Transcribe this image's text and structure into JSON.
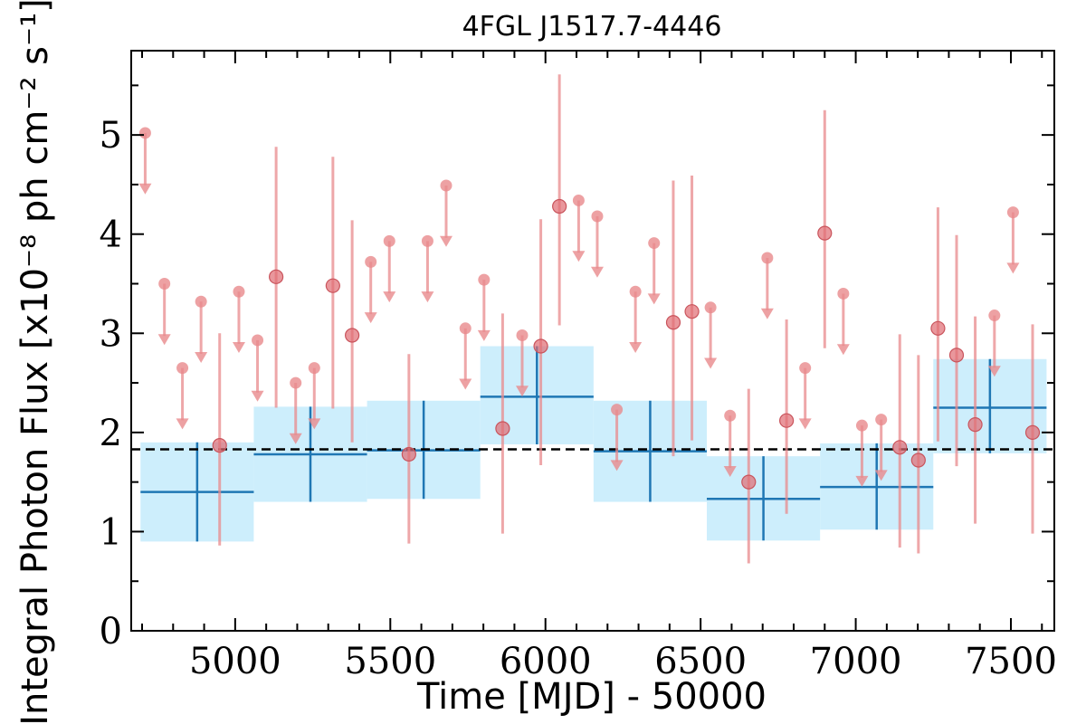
{
  "chart_data": {
    "type": "scatter",
    "title": "4FGL J1517.7-4446",
    "xlabel": "Time [MJD] - 50000",
    "ylabel": "Integral Photon Flux [x10⁻⁸ ph cm⁻² s⁻¹]",
    "xlim": [
      4665,
      7640
    ],
    "ylim": [
      0,
      5.85
    ],
    "x_ticks": [
      5000,
      5500,
      6000,
      6500,
      7000,
      7500
    ],
    "x_minor_step": 100,
    "y_ticks": [
      0,
      1,
      2,
      3,
      4,
      5
    ],
    "y_minor_step": 0.5,
    "grid": false,
    "colors": {
      "short_bins": "#e8898c",
      "long_bins_line": "#1f77b4",
      "long_bins_band": "#cdeefc",
      "average_line": "#000000"
    },
    "average_flux": 1.83,
    "long_bins": [
      {
        "x_start": 4695,
        "x_end": 5060,
        "flux": 1.4,
        "flux_low": 0.9,
        "flux_high": 1.9
      },
      {
        "x_start": 5060,
        "x_end": 5425,
        "flux": 1.78,
        "flux_low": 1.3,
        "flux_high": 2.26
      },
      {
        "x_start": 5425,
        "x_end": 5790,
        "flux": 1.82,
        "flux_low": 1.33,
        "flux_high": 2.32
      },
      {
        "x_start": 5790,
        "x_end": 6155,
        "flux": 2.36,
        "flux_low": 1.88,
        "flux_high": 2.87
      },
      {
        "x_start": 6155,
        "x_end": 6520,
        "flux": 1.81,
        "flux_low": 1.3,
        "flux_high": 2.32
      },
      {
        "x_start": 6520,
        "x_end": 6885,
        "flux": 1.33,
        "flux_low": 0.91,
        "flux_high": 1.76
      },
      {
        "x_start": 6885,
        "x_end": 7250,
        "flux": 1.45,
        "flux_low": 1.02,
        "flux_high": 1.89
      },
      {
        "x_start": 7250,
        "x_end": 7615,
        "flux": 2.25,
        "flux_low": 1.79,
        "flux_high": 2.74
      }
    ],
    "short_bins": [
      {
        "x": 4710,
        "flux": 5.02,
        "upper_limit": true
      },
      {
        "x": 4772,
        "flux": 3.5,
        "upper_limit": true
      },
      {
        "x": 4830,
        "flux": 2.65,
        "upper_limit": true
      },
      {
        "x": 4890,
        "flux": 3.32,
        "upper_limit": true
      },
      {
        "x": 4950,
        "flux": 1.87,
        "upper_limit": false,
        "flux_low": 0.86,
        "flux_high": 3.0
      },
      {
        "x": 5012,
        "flux": 3.42,
        "upper_limit": true
      },
      {
        "x": 5072,
        "flux": 2.93,
        "upper_limit": true
      },
      {
        "x": 5132,
        "flux": 3.57,
        "upper_limit": false,
        "flux_low": 2.25,
        "flux_high": 4.88
      },
      {
        "x": 5195,
        "flux": 2.5,
        "upper_limit": true
      },
      {
        "x": 5255,
        "flux": 2.65,
        "upper_limit": true
      },
      {
        "x": 5315,
        "flux": 3.48,
        "upper_limit": false,
        "flux_low": 2.24,
        "flux_high": 4.78
      },
      {
        "x": 5377,
        "flux": 2.98,
        "upper_limit": false,
        "flux_low": 1.9,
        "flux_high": 4.14
      },
      {
        "x": 5437,
        "flux": 3.72,
        "upper_limit": true
      },
      {
        "x": 5497,
        "flux": 3.93,
        "upper_limit": true
      },
      {
        "x": 5560,
        "flux": 1.78,
        "upper_limit": false,
        "flux_low": 0.88,
        "flux_high": 2.79
      },
      {
        "x": 5620,
        "flux": 3.93,
        "upper_limit": true
      },
      {
        "x": 5680,
        "flux": 4.49,
        "upper_limit": true
      },
      {
        "x": 5742,
        "flux": 3.05,
        "upper_limit": true
      },
      {
        "x": 5802,
        "flux": 3.54,
        "upper_limit": true
      },
      {
        "x": 5862,
        "flux": 2.04,
        "upper_limit": false,
        "flux_low": 0.98,
        "flux_high": 3.2
      },
      {
        "x": 5925,
        "flux": 2.98,
        "upper_limit": true
      },
      {
        "x": 5985,
        "flux": 2.87,
        "upper_limit": false,
        "flux_low": 1.67,
        "flux_high": 4.15
      },
      {
        "x": 6045,
        "flux": 4.28,
        "upper_limit": false,
        "flux_low": 3.08,
        "flux_high": 5.61
      },
      {
        "x": 6107,
        "flux": 4.34,
        "upper_limit": true
      },
      {
        "x": 6167,
        "flux": 4.18,
        "upper_limit": true
      },
      {
        "x": 6230,
        "flux": 2.23,
        "upper_limit": true
      },
      {
        "x": 6290,
        "flux": 3.42,
        "upper_limit": true
      },
      {
        "x": 6350,
        "flux": 3.91,
        "upper_limit": true
      },
      {
        "x": 6412,
        "flux": 3.11,
        "upper_limit": false,
        "flux_low": 1.76,
        "flux_high": 4.54
      },
      {
        "x": 6472,
        "flux": 3.22,
        "upper_limit": false,
        "flux_low": 1.92,
        "flux_high": 4.59
      },
      {
        "x": 6532,
        "flux": 3.26,
        "upper_limit": true
      },
      {
        "x": 6595,
        "flux": 2.17,
        "upper_limit": true
      },
      {
        "x": 6655,
        "flux": 1.5,
        "upper_limit": false,
        "flux_low": 0.68,
        "flux_high": 2.44
      },
      {
        "x": 6715,
        "flux": 3.76,
        "upper_limit": true
      },
      {
        "x": 6777,
        "flux": 2.12,
        "upper_limit": false,
        "flux_low": 1.18,
        "flux_high": 3.14
      },
      {
        "x": 6837,
        "flux": 2.65,
        "upper_limit": true
      },
      {
        "x": 6900,
        "flux": 4.01,
        "upper_limit": false,
        "flux_low": 2.85,
        "flux_high": 5.25
      },
      {
        "x": 6960,
        "flux": 3.4,
        "upper_limit": true
      },
      {
        "x": 7020,
        "flux": 2.07,
        "upper_limit": true
      },
      {
        "x": 7082,
        "flux": 2.13,
        "upper_limit": true
      },
      {
        "x": 7142,
        "flux": 1.85,
        "upper_limit": false,
        "flux_low": 0.84,
        "flux_high": 2.99
      },
      {
        "x": 7202,
        "flux": 1.72,
        "upper_limit": false,
        "flux_low": 0.78,
        "flux_high": 2.78
      },
      {
        "x": 7265,
        "flux": 3.05,
        "upper_limit": false,
        "flux_low": 1.91,
        "flux_high": 4.27
      },
      {
        "x": 7325,
        "flux": 2.78,
        "upper_limit": false,
        "flux_low": 1.66,
        "flux_high": 3.99
      },
      {
        "x": 7385,
        "flux": 2.08,
        "upper_limit": false,
        "flux_low": 1.08,
        "flux_high": 3.17
      },
      {
        "x": 7447,
        "flux": 3.18,
        "upper_limit": true
      },
      {
        "x": 7507,
        "flux": 4.22,
        "upper_limit": true
      },
      {
        "x": 7570,
        "flux": 2.0,
        "upper_limit": false,
        "flux_low": 0.98,
        "flux_high": 3.09
      }
    ]
  }
}
